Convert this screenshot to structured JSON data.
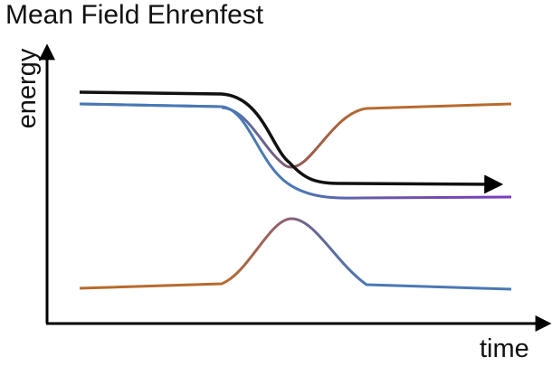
{
  "title": "Mean Field Ehrenfest",
  "axes": {
    "y_label": "energy",
    "x_label": "time"
  },
  "colors": {
    "axis": "#000000",
    "trajectory": "#111111",
    "upper_surface_left": "#4a78b5",
    "upper_surface_right": "#b86a2c",
    "lower_surface_left": "#b86a2c",
    "lower_surface_right": "#4a78b5",
    "mixed_state": "#7a5598",
    "right_tail": "#7a3cbf"
  }
}
